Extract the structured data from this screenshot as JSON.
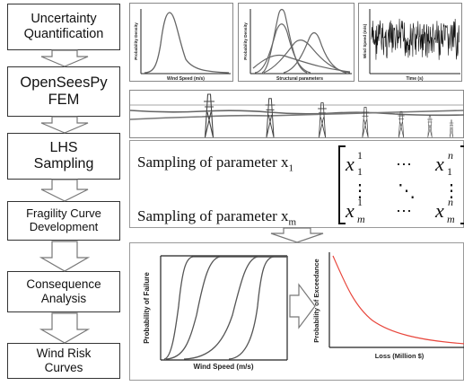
{
  "steps": [
    {
      "line1": "Uncertainty",
      "line2": "Quantification"
    },
    {
      "line1": "OpenSeesPy",
      "line2": "FEM"
    },
    {
      "line1": "LHS",
      "line2": "Sampling"
    },
    {
      "line1": "Fragility Curve",
      "line2": "Development"
    },
    {
      "line1": "Consequence",
      "line2": "Analysis"
    },
    {
      "line1": "Wind Risk",
      "line2": "Curves"
    }
  ],
  "pdf_plots": {
    "wind": {
      "xlabel": "Wind Speed (m/s)",
      "ylabel": "Probability Density"
    },
    "structural": {
      "xlabel": "Structural parameters",
      "ylabel": "Probability Density"
    },
    "timeseries": {
      "xlabel": "Time (s)",
      "ylabel": "Wind Speed (m/s)"
    }
  },
  "sampling": {
    "line1_text": "Sampling of parameter x",
    "line1_sub": "1",
    "line2_text": "Sampling of parameter x",
    "line2_sub": "m",
    "matrix": {
      "r1c1_base": "x",
      "r1c1_sup": "1",
      "r1c1_sub": "1",
      "r1_dots": "⋯",
      "r1c3_base": "x",
      "r1c3_sup": "n",
      "r1c3_sub": "1",
      "vdots": "⋮",
      "ddots": "⋱",
      "r3c1_base": "x",
      "r3c1_sup": "1",
      "r3c1_sub": "m",
      "r3c3_base": "x",
      "r3c3_sup": "n",
      "r3c3_sub": "m"
    }
  },
  "fragility": {
    "xlabel": "Wind Speed (m/s)",
    "ylabel": "Probability of Failure"
  },
  "loss": {
    "xlabel": "Loss (Million $)",
    "ylabel": "Probability of Exceedance",
    "curve_color": "#e8463c"
  }
}
